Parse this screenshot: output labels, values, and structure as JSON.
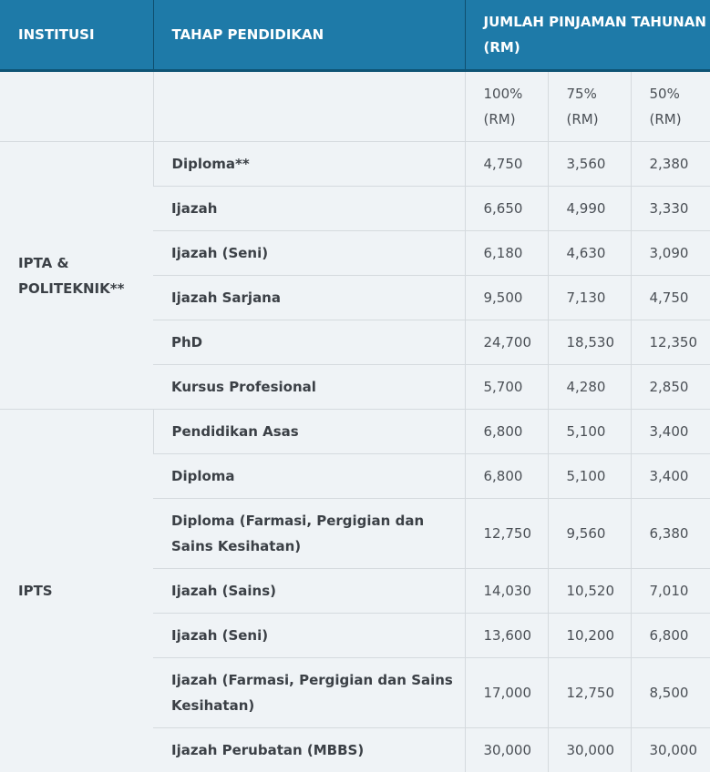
{
  "header": {
    "institusi": "INSTITUSI",
    "tahap": "TAHAP PENDIDIKAN",
    "jumlah": "JUMLAH PINJAMAN TAHUNAN (RM)"
  },
  "subheader": {
    "p100": "100% (RM)",
    "p75": "75% (RM)",
    "p50": "50% (RM)"
  },
  "groups": [
    {
      "institution": "IPTA & POLITEKNIK**",
      "rows": [
        {
          "level": "Diploma**",
          "v100": "4,750",
          "v75": "3,560",
          "v50": "2,380"
        },
        {
          "level": "Ijazah",
          "v100": "6,650",
          "v75": "4,990",
          "v50": "3,330"
        },
        {
          "level": "Ijazah (Seni)",
          "v100": "6,180",
          "v75": "4,630",
          "v50": "3,090"
        },
        {
          "level": "Ijazah Sarjana",
          "v100": "9,500",
          "v75": "7,130",
          "v50": "4,750"
        },
        {
          "level": "PhD",
          "v100": "24,700",
          "v75": "18,530",
          "v50": "12,350"
        },
        {
          "level": "Kursus Profesional",
          "v100": "5,700",
          "v75": "4,280",
          "v50": "2,850"
        }
      ]
    },
    {
      "institution": "IPTS",
      "rows": [
        {
          "level": "Pendidikan Asas",
          "v100": "6,800",
          "v75": "5,100",
          "v50": "3,400"
        },
        {
          "level": "Diploma",
          "v100": "6,800",
          "v75": "5,100",
          "v50": "3,400"
        },
        {
          "level": "Diploma (Farmasi, Pergigian dan Sains Kesihatan)",
          "v100": "12,750",
          "v75": "9,560",
          "v50": "6,380"
        },
        {
          "level": "Ijazah (Sains)",
          "v100": "14,030",
          "v75": "10,520",
          "v50": "7,010"
        },
        {
          "level": "Ijazah (Seni)",
          "v100": "13,600",
          "v75": "10,200",
          "v50": "6,800"
        },
        {
          "level": "Ijazah (Farmasi, Pergigian dan Sains Kesihatan)",
          "v100": "17,000",
          "v75": "12,750",
          "v50": "8,500"
        },
        {
          "level": "Ijazah Perubatan (MBBS)",
          "v100": "30,000",
          "v75": "30,000",
          "v50": "30,000"
        }
      ]
    }
  ]
}
